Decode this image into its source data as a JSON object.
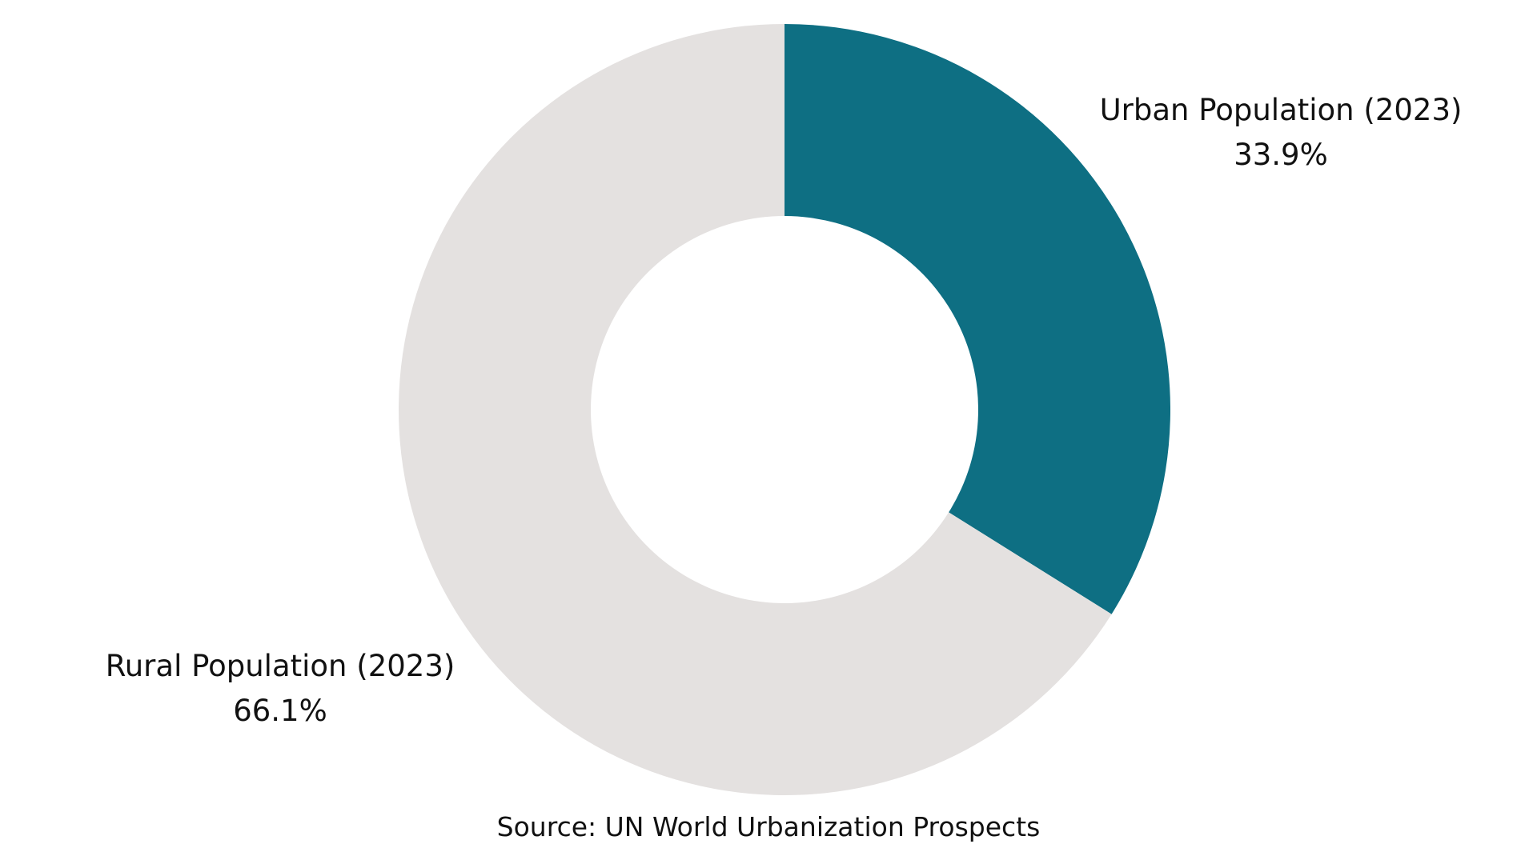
{
  "chart_data": {
    "type": "pie",
    "donut": true,
    "title": "",
    "categories": [
      "Urban Population (2023)",
      "Rural Population (2023)"
    ],
    "values": [
      33.9,
      66.1
    ],
    "value_labels": [
      "33.9%",
      "66.1%"
    ],
    "colors": [
      "#0e6f83",
      "#e4e1e0"
    ],
    "start_angle": "12 o'clock",
    "direction": "clockwise",
    "legend": "none",
    "note": "Source: UN World Urbanization Prospects"
  }
}
